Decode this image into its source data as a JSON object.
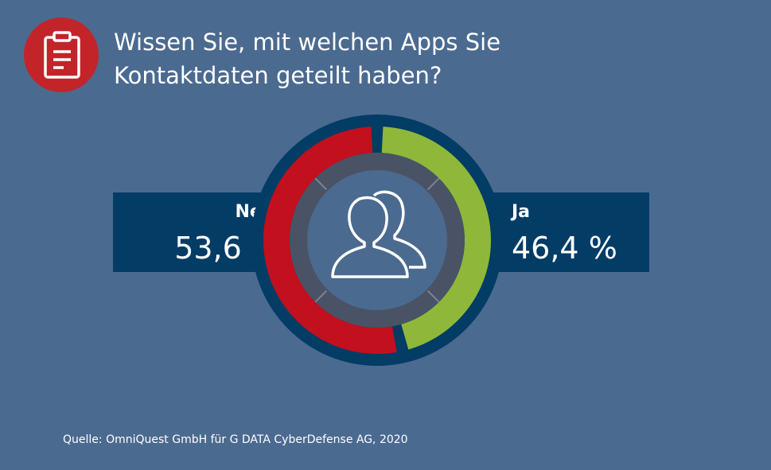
{
  "header": {
    "title_line1": "Wissen Sie, mit welchen Apps Sie",
    "title_line2": "Kontaktdaten geteilt haben?",
    "icon": "clipboard-icon"
  },
  "chart_data": {
    "type": "pie",
    "title": "Wissen Sie, mit welchen Apps Sie Kontaktdaten geteilt haben?",
    "categories": [
      "Nein",
      "Ja"
    ],
    "values": [
      53.6,
      46.4
    ],
    "value_labels": [
      "53,6 %",
      "46,4 %"
    ],
    "colors": [
      "#c2101f",
      "#8fb83a"
    ],
    "center_icon": "users-icon"
  },
  "footer": {
    "source": "Quelle: OmniQuest GmbH für G DATA CyberDefense AG, 2020"
  },
  "colors": {
    "background": "#4b6a90",
    "band": "#033c65",
    "inner_ring": "#4a5366",
    "badge": "#c2242a"
  }
}
